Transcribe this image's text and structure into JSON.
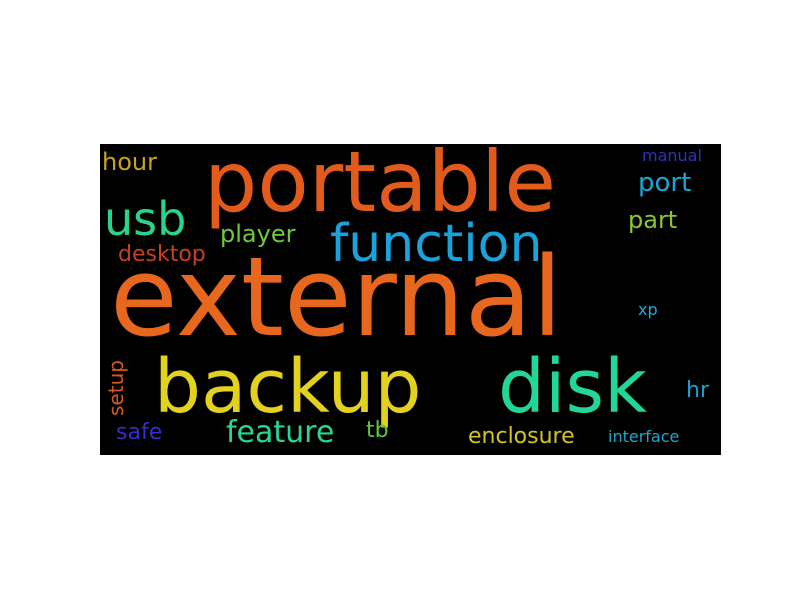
{
  "wordcloud": {
    "words": [
      {
        "text": "external",
        "color": "#e8671e"
      },
      {
        "text": "portable",
        "color": "#e35a1d"
      },
      {
        "text": "function",
        "color": "#1aa2dc"
      },
      {
        "text": "backup",
        "color": "#e2d11f"
      },
      {
        "text": "disk",
        "color": "#22d696"
      },
      {
        "text": "usb",
        "color": "#27d48a"
      },
      {
        "text": "hour",
        "color": "#c8a41c"
      },
      {
        "text": "player",
        "color": "#6ec93b"
      },
      {
        "text": "desktop",
        "color": "#c8401a"
      },
      {
        "text": "port",
        "color": "#19a7d2"
      },
      {
        "text": "part",
        "color": "#8cc82a"
      },
      {
        "text": "manual",
        "color": "#2a33c4"
      },
      {
        "text": "setup",
        "color": "#d8571b"
      },
      {
        "text": "safe",
        "color": "#3a2cc8"
      },
      {
        "text": "feature",
        "color": "#28d690"
      },
      {
        "text": "tb",
        "color": "#5cc447"
      },
      {
        "text": "enclosure",
        "color": "#d4c51f"
      },
      {
        "text": "interface",
        "color": "#1aa8c8"
      },
      {
        "text": "xp",
        "color": "#1aa8d4"
      },
      {
        "text": "hr",
        "color": "#1a9fcf"
      }
    ]
  }
}
